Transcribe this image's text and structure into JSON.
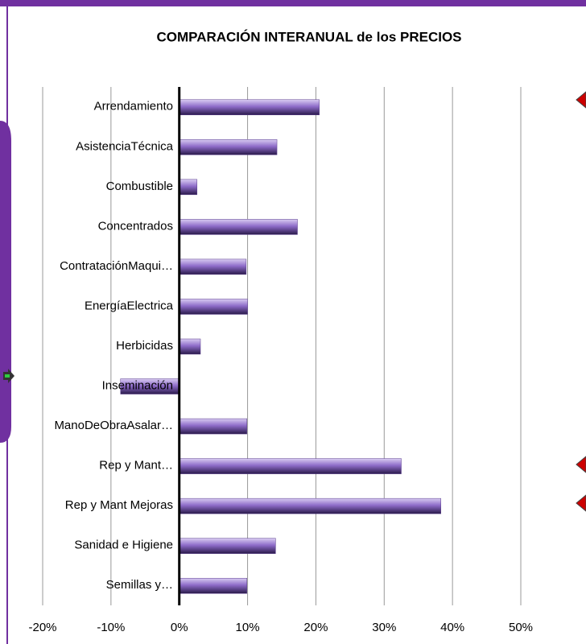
{
  "chart_data": {
    "type": "bar",
    "orientation": "horizontal",
    "title": "COMPARACIÓN INTERANUAL de los PRECIOS",
    "categories": [
      "Arrendamiento",
      "AsistenciaTécnica",
      "Combustible",
      "Concentrados",
      "ContrataciónMaqui…",
      "EnergíaElectrica",
      "Herbicidas",
      "Inseminación",
      "ManoDeObraAsalar…",
      "Rep y Mant…",
      "Rep y Mant Mejoras",
      "Sanidad e Higiene",
      "Semillas y…"
    ],
    "values": [
      20.5,
      14.3,
      2.6,
      17.3,
      9.8,
      10,
      3.1,
      -8.6,
      9.9,
      32.5,
      38.3,
      14.1,
      9.9
    ],
    "color": "#8e6cc9",
    "xlim": [
      -20,
      50
    ],
    "xticks": [
      {
        "value": -20,
        "label": "-20%"
      },
      {
        "value": -10,
        "label": "-10%"
      },
      {
        "value": 0,
        "label": "0%"
      },
      {
        "value": 10,
        "label": "10%"
      },
      {
        "value": 20,
        "label": "20%"
      },
      {
        "value": 30,
        "label": "30%"
      },
      {
        "value": 40,
        "label": "40%"
      },
      {
        "value": 50,
        "label": "50%"
      }
    ],
    "grid": true
  }
}
